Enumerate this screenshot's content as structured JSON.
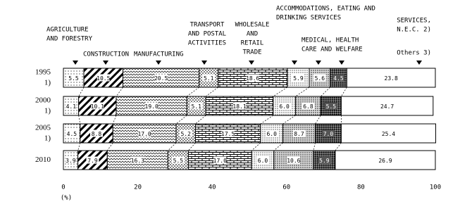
{
  "chart_data": {
    "type": "stacked-bar-horizontal",
    "categories": [
      "1995",
      "2000",
      "2005",
      "2010"
    ],
    "category_notes": [
      "1)",
      "1)",
      "1)",
      null
    ],
    "xlim": [
      0,
      100
    ],
    "xticks": [
      0,
      20,
      40,
      60,
      80,
      100
    ],
    "xlabel": "(%)",
    "series": [
      {
        "name": [
          "AGRICULTURE",
          "AND FORESTRY"
        ],
        "pattern": "dots",
        "values": [
          5.5,
          4.1,
          4.5,
          3.9
        ],
        "value_labels": [
          "5.5",
          "4.1",
          "4.5",
          "3.9"
        ]
      },
      {
        "name": [
          "CONSTRUCTION"
        ],
        "pattern": "hatch",
        "values": [
          10.5,
          10.1,
          8.8,
          7.9
        ],
        "value_labels": [
          "10.5",
          "10.1",
          "8.8",
          "7.9"
        ]
      },
      {
        "name": [
          "MANUFACTURING"
        ],
        "pattern": "wave",
        "values": [
          20.5,
          19.0,
          17.0,
          16.3
        ],
        "value_labels": [
          "20.5",
          "19.0",
          "17.0",
          "16.3"
        ]
      },
      {
        "name": [
          "TRANSPORT",
          "AND POSTAL",
          "ACTIVITIES"
        ],
        "pattern": "cross",
        "values": [
          5.1,
          5.1,
          5.2,
          5.5
        ],
        "value_labels": [
          "5.1",
          "5.1",
          "5.2",
          "5.5"
        ]
      },
      {
        "name": [
          "WHOLESALE",
          "AND",
          "RETAIL",
          "TRADE"
        ],
        "pattern": "brick",
        "values": [
          18.6,
          18.1,
          17.5,
          17.0
        ],
        "value_labels": [
          "18.6",
          "18.1",
          "17.5",
          "17.0"
        ]
      },
      {
        "name": [
          "ACCOMMODATIONS, EATING AND",
          "DRINKING SERVICES"
        ],
        "pattern": "dots2",
        "values": [
          5.9,
          6.0,
          6.0,
          6.0
        ],
        "value_labels": [
          "5.9",
          "6.0",
          "6.0",
          "6.0"
        ]
      },
      {
        "name": [
          "MEDICAL, HEALTH",
          "CARE AND WELFARE"
        ],
        "pattern": "dots3",
        "values": [
          5.6,
          6.8,
          8.7,
          10.6
        ],
        "value_labels": [
          "5.6",
          "6.8",
          "8.7",
          "10.6"
        ]
      },
      {
        "name": [
          "SERVICES,",
          "N.E.C. 2)"
        ],
        "pattern": "dark",
        "values": [
          4.5,
          5.5,
          7.0,
          5.9
        ],
        "value_labels": [
          "4.5",
          "5.5",
          "7.0",
          "5.9"
        ]
      },
      {
        "name": [
          "Others 3)"
        ],
        "pattern": "none",
        "values": [
          23.8,
          24.7,
          25.4,
          26.9
        ],
        "value_labels": [
          "23.8",
          "24.7",
          "25.4",
          "26.9"
        ]
      }
    ]
  }
}
